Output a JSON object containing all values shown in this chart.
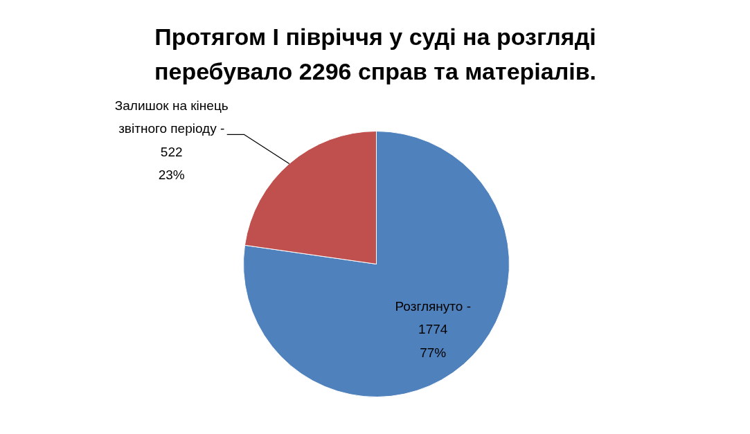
{
  "chart_data": {
    "type": "pie",
    "title": "Протягом I півріччя у суді на розгляді перебувало 2296 справ та матеріалів.",
    "categories": [
      "Розглянуто -",
      "Залишок на кінець звітного періоду -"
    ],
    "values": [
      1774,
      522
    ],
    "colors": [
      "#4f81bd",
      "#c0504d"
    ],
    "value_labels": [
      "1774\n77%",
      "522\n23%"
    ]
  }
}
